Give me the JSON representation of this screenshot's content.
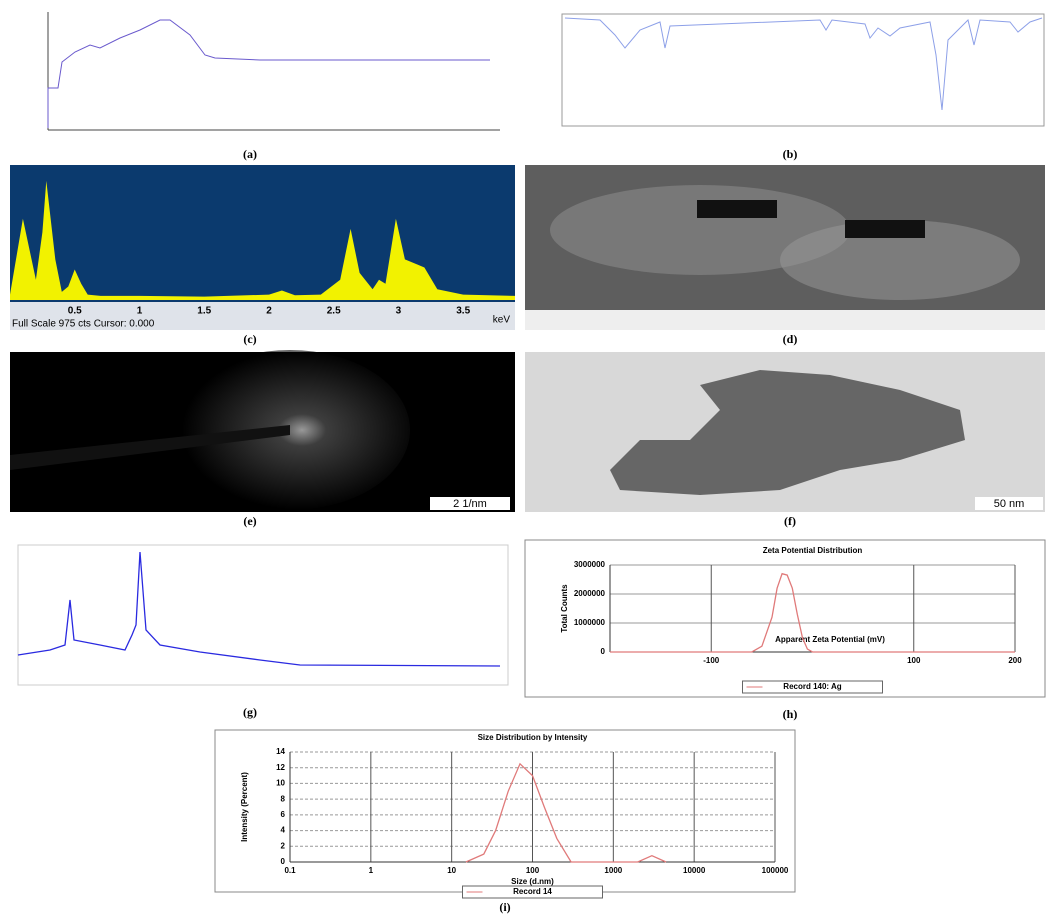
{
  "captions": [
    "(a)",
    "(b)",
    "(c)",
    "(d)",
    "(e)",
    "(f)",
    "(g)",
    "(h)",
    "(i)"
  ],
  "scale_bars": [
    "2 1/nm",
    "50 nm"
  ],
  "chart_data": [
    {
      "type": "area",
      "x_label": "keV",
      "footer": "Full Scale 975 cts Cursor: 0.000",
      "background": "#0b3a6e",
      "color": "#f2f200",
      "x": [
        0,
        0.1,
        0.2,
        0.25,
        0.28,
        0.35,
        0.4,
        0.45,
        0.5,
        0.55,
        0.6,
        0.7,
        1.0,
        1.5,
        2.0,
        2.1,
        2.2,
        2.4,
        2.55,
        2.63,
        2.7,
        2.8,
        2.85,
        2.9,
        2.98,
        3.05,
        3.15,
        3.2,
        3.3,
        3.5,
        3.9
      ],
      "values": [
        40,
        600,
        150,
        500,
        880,
        300,
        60,
        100,
        225,
        120,
        40,
        30,
        30,
        25,
        40,
        70,
        35,
        40,
        150,
        525,
        200,
        80,
        150,
        120,
        600,
        300,
        260,
        240,
        80,
        40,
        30
      ],
      "xlim": [
        0,
        3.9
      ],
      "ylim": [
        0,
        975
      ],
      "xticks": [
        0.5,
        1,
        1.5,
        2,
        2.5,
        3,
        3.5
      ]
    },
    {
      "type": "line",
      "title": "Zeta Potential Distribution",
      "x_label": "Apparent Zeta Potential (mV)",
      "y_label": "Total Counts",
      "color": "#e07a7a",
      "grid": true,
      "legend": "Record 140: Ag",
      "x": [
        -200,
        -60,
        -50,
        -40,
        -35,
        -30,
        -25,
        -20,
        -15,
        -10,
        -5,
        0,
        200
      ],
      "values": [
        0,
        0,
        200000,
        1200000,
        2200000,
        2700000,
        2650000,
        2200000,
        1300000,
        500000,
        100000,
        0,
        0
      ],
      "xlim": [
        -200,
        200
      ],
      "ylim": [
        0,
        3000000
      ],
      "xticks": [
        -100,
        100,
        200
      ],
      "yticks": [
        0,
        1000000,
        2000000,
        3000000
      ]
    },
    {
      "type": "line",
      "title": "Size Distribution by Intensity",
      "x_label": "Size (d.nm)",
      "y_label": "Intensity (Percent)",
      "color": "#e07a7a",
      "grid": true,
      "xscale": "log",
      "legend": "Record 14",
      "x": [
        15,
        25,
        35,
        50,
        70,
        100,
        140,
        200,
        300,
        2000,
        3000,
        4500
      ],
      "values": [
        0,
        1,
        4,
        9,
        12.5,
        11,
        7,
        3,
        0,
        0,
        0.8,
        0
      ],
      "xlim": [
        0.1,
        100000
      ],
      "ylim": [
        0,
        14
      ],
      "xticks": [
        0.1,
        1,
        10,
        100,
        1000,
        10000,
        100000
      ],
      "yticks": [
        0,
        2,
        4,
        6,
        8,
        10,
        12,
        14
      ]
    }
  ]
}
